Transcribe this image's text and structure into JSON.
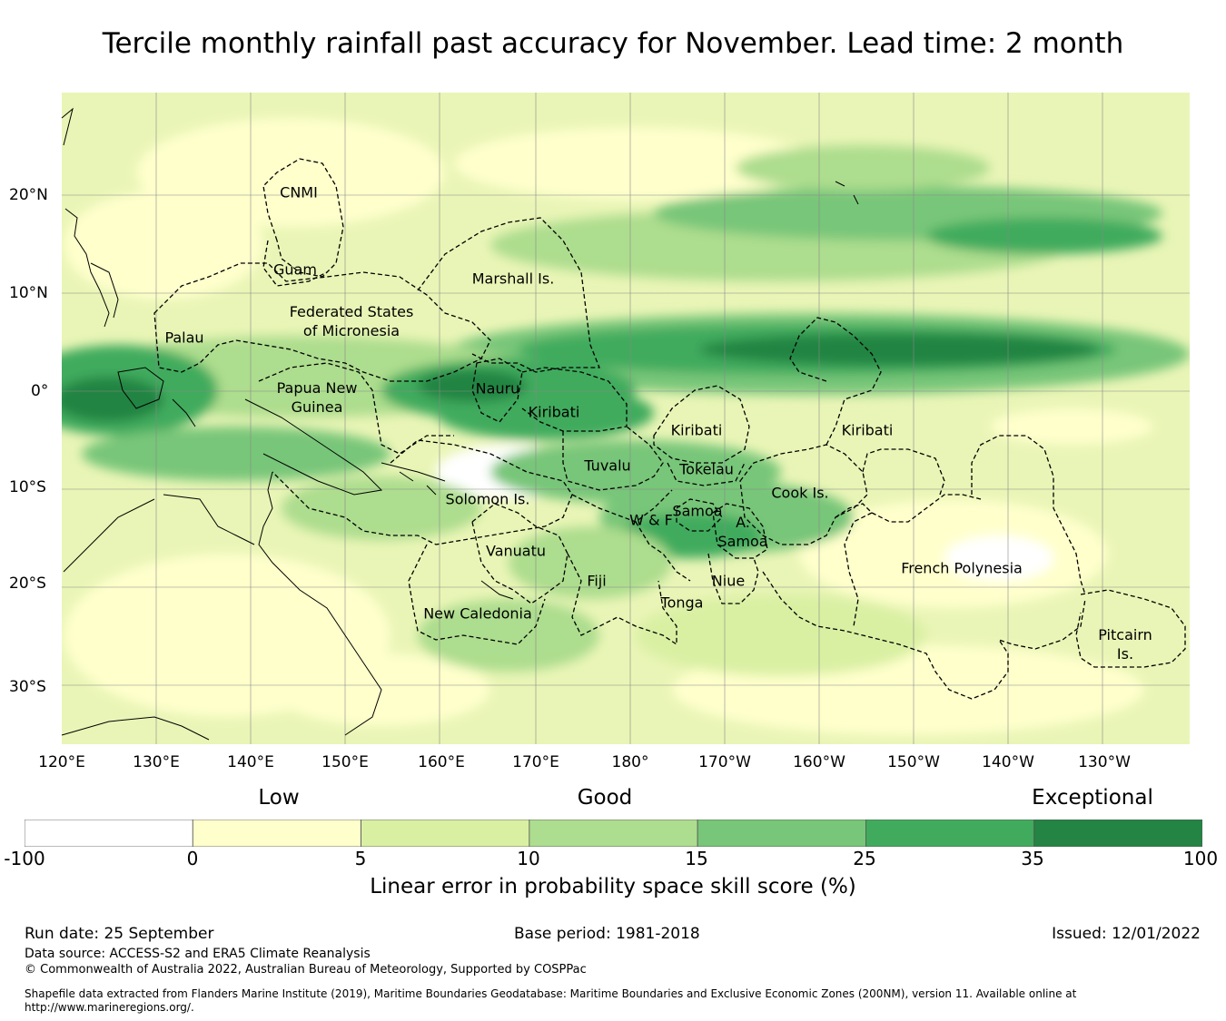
{
  "title": "Tercile monthly rainfall past accuracy for November. Lead time: 2 month",
  "lon_labels": [
    "120°E",
    "130°E",
    "140°E",
    "150°E",
    "160°E",
    "170°E",
    "180°",
    "170°W",
    "160°W",
    "150°W",
    "140°W",
    "130°W"
  ],
  "lat_labels": [
    "20°N",
    "10°N",
    "0°",
    "10°S",
    "20°S",
    "30°S"
  ],
  "regions": {
    "cnmi": "CNMI",
    "guam": "Guam",
    "marshall": "Marshall Is.",
    "fsm_1": "Federated States",
    "fsm_2": "of Micronesia",
    "palau": "Palau",
    "png_1": "Papua New",
    "png_2": "Guinea",
    "nauru": "Nauru",
    "kiribati_w": "Kiribati",
    "kiribati_c": "Kiribati",
    "kiribati_e": "Kiribati",
    "tuvalu": "Tuvalu",
    "tokelau": "Tokelau",
    "solomon": "Solomon Is.",
    "samoa": "Samoa",
    "wf": "W & F",
    "as_1": "A.",
    "as_2": "Samoa",
    "cook": "Cook Is.",
    "vanuatu": "Vanuatu",
    "fiji": "Fiji",
    "niue": "Niue",
    "tonga": "Tonga",
    "french_polynesia": "French Polynesia",
    "new_caledonia": "New Caledonia",
    "pitcairn_1": "Pitcairn",
    "pitcairn_2": "Is."
  },
  "legend": {
    "categories": [
      "Low",
      "Good",
      "Exceptional"
    ],
    "ticks": [
      "-100",
      "0",
      "5",
      "10",
      "15",
      "25",
      "35",
      "100"
    ],
    "colors": [
      "#ffffff",
      "#ffffcc",
      "#d9f0a3",
      "#addd8e",
      "#78c679",
      "#41ab5d",
      "#238443"
    ],
    "title": "Linear error in probability space skill score (%)"
  },
  "footer": {
    "run_date": "Run date: 25 September",
    "base_period": "Base period: 1981-2018",
    "issued": "Issued: 12/01/2022",
    "data_source": "Data source: ACCESS-S2 and ERA5 Climate Reanalysis",
    "copyright": "© Commonwealth of Australia 2022, Australian Bureau of Meteorology, Supported by COSPPac",
    "shapefile_1": "Shapefile data extracted from Flanders Marine Institute (2019), Maritime Boundaries Geodatabase: Maritime Boundaries and Exclusive Economic Zones (200NM), version 11. Available online at",
    "shapefile_2": "http://www.marineregions.org/."
  }
}
